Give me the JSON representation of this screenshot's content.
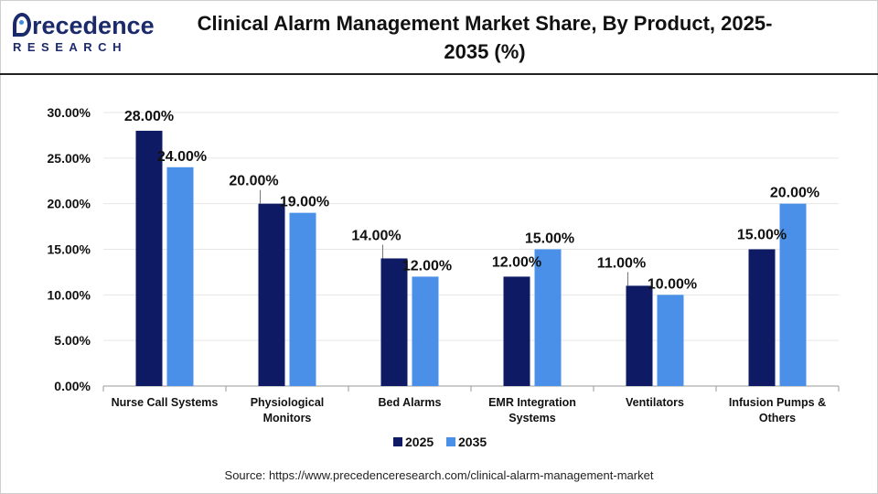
{
  "brand": {
    "logo_top": "recedence",
    "logo_bottom": "RESEARCH"
  },
  "source_text": "Source: https://www.precedenceresearch.com/clinical-alarm-management-market",
  "colors": {
    "series_2025": "#0e1a63",
    "series_2035": "#4a90e8",
    "grid": "#e6e6e6",
    "axis": "#9a9a9a"
  },
  "chart_data": {
    "type": "bar",
    "title": "Clinical Alarm Management Market Share, By Product, 2025-2035 (%)",
    "title_lines": [
      "Clinical Alarm Management Market Share, By Product, 2025-",
      "2035 (%)"
    ],
    "categories": [
      [
        "Nurse Call Systems"
      ],
      [
        "Physiological",
        "Monitors"
      ],
      [
        "Bed Alarms"
      ],
      [
        "EMR Integration",
        "Systems"
      ],
      [
        "Ventilators"
      ],
      [
        "Infusion Pumps &",
        "Others"
      ]
    ],
    "series": [
      {
        "name": "2025",
        "values": [
          28,
          20,
          14,
          12,
          11,
          15
        ],
        "labels": [
          "28.00%",
          "20.00%",
          "14.00%",
          "12.00%",
          "11.00%",
          "15.00%"
        ]
      },
      {
        "name": "2035",
        "values": [
          24,
          19,
          12,
          15,
          10,
          20
        ],
        "labels": [
          "24.00%",
          "19.00%",
          "12.00%",
          "15.00%",
          "10.00%",
          "20.00%"
        ]
      }
    ],
    "yticks": [
      0,
      5,
      10,
      15,
      20,
      25,
      30
    ],
    "ytick_labels": [
      "0.00%",
      "5.00%",
      "10.00%",
      "15.00%",
      "20.00%",
      "25.00%",
      "30.00%"
    ],
    "ylim": [
      0,
      30
    ],
    "xlabel": "",
    "ylabel": "",
    "grid": true,
    "legend_position": "bottom-center"
  }
}
